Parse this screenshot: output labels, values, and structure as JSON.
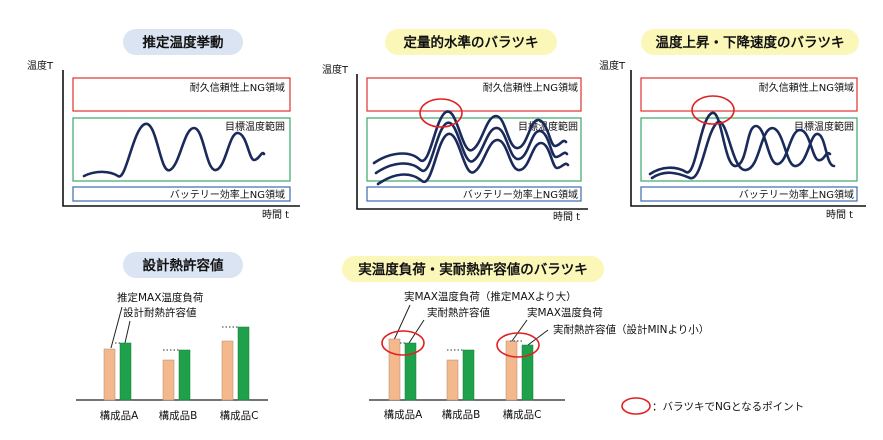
{
  "panels": [
    {
      "title": "推定温度挙動",
      "ylabel": "温度T",
      "xlabel": "時間 t",
      "upper_zone": "耐久信頼性上NG領域",
      "target_zone": "目標温度範囲",
      "lower_zone": "バッテリー効率上NG領域"
    },
    {
      "title": "定量的水準のバラツキ",
      "ylabel": "温度T",
      "xlabel": "時間 t",
      "upper_zone": "耐久信頼性上NG領域",
      "target_zone": "目標温度範囲",
      "lower_zone": "バッテリー効率上NG領域"
    },
    {
      "title": "温度上昇・下降速度のバラツキ",
      "ylabel": "温度T",
      "xlabel": "時間 t",
      "upper_zone": "耐久信頼性上NG領域",
      "target_zone": "目標温度範囲",
      "lower_zone": "バッテリー効率上NG領域"
    }
  ],
  "bottom_left": {
    "title": "設計熱許容値",
    "label_load": "推定MAX温度負荷",
    "label_cap": "設計耐熱許容値",
    "components": [
      "構成品A",
      "構成品B",
      "構成品C"
    ]
  },
  "bottom_mid": {
    "title": "実温度負荷・実耐熱許容値のバラツキ",
    "label_a_load": "実MAX温度負荷（推定MAXより大）",
    "label_a_cap": "実耐熱許容値",
    "label_c_load": "実MAX温度負荷",
    "label_c_cap": "実耐熱許容値（設計MINより小）",
    "components": [
      "構成品A",
      "構成品B",
      "構成品C"
    ]
  },
  "legend": {
    "text": "：バラツキでNGとなるポイント"
  },
  "colors": {
    "pill_blue": "#dbe4f3",
    "pill_yellow": "#fbf7b8",
    "ng_circle": "#e02020",
    "load_bar": "#f4b88d",
    "cap_bar": "#1fa14b",
    "curve": "#1a2a5a"
  }
}
